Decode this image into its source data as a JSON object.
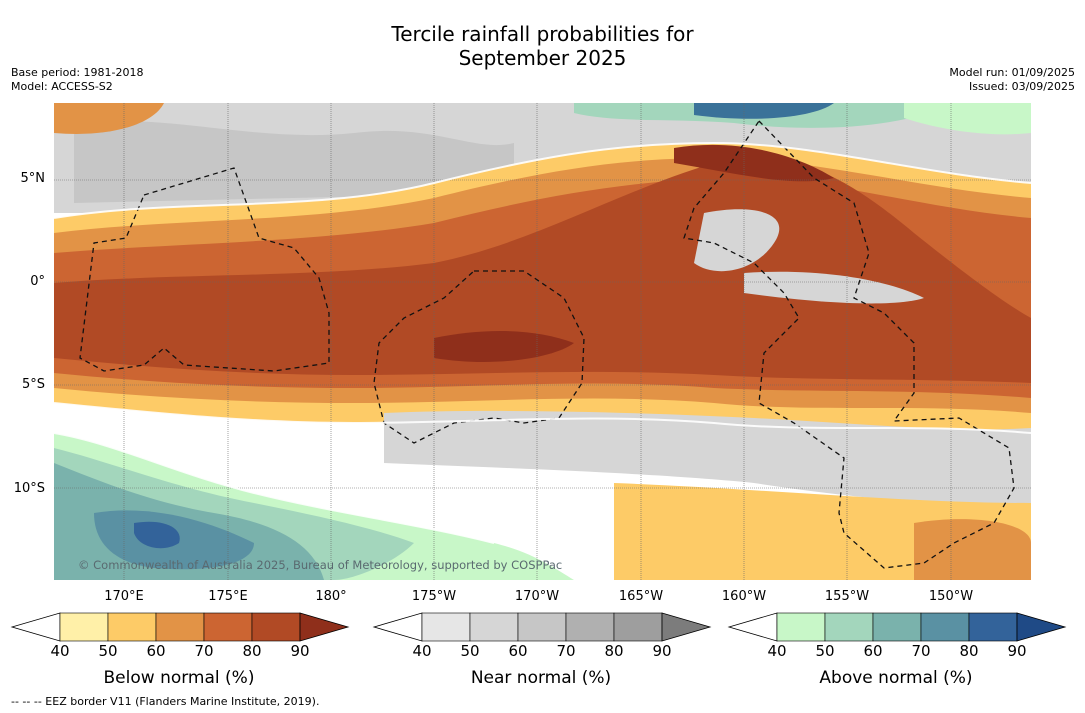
{
  "title": {
    "line1": "Tercile rainfall probabilities for",
    "line2": "September 2025"
  },
  "meta": {
    "base_period": "Base period: 1981-2018",
    "model": "Model: ACCESS-S2",
    "model_run": "Model run: 01/09/2025",
    "issued": "Issued: 03/09/2025"
  },
  "map": {
    "lat_labels": [
      "5°N",
      "0°",
      "5°S",
      "10°S"
    ],
    "lon_labels": [
      "170°E",
      "175°E",
      "180°",
      "175°W",
      "170°W",
      "165°W",
      "160°W",
      "155°W",
      "150°W"
    ],
    "copyright": "© Commonwealth of Australia 2025, Bureau of Meteorology, supported by COSPPac",
    "colors": {
      "ocean_white": "#ffffff",
      "below_40": "#fff0a8",
      "below_50": "#fdcb67",
      "below_60": "#e29346",
      "below_70": "#cc6532",
      "below_80": "#b14a25",
      "below_90": "#8f2f1b",
      "near_40": "#e6e6e6",
      "near_50": "#d6d6d6",
      "near_60": "#c6c6c6",
      "near_70": "#b0b0b0",
      "near_80": "#9e9e9e",
      "near_90": "#7c7c7c",
      "above_40": "#c8f7c8",
      "above_50": "#a3d6bc",
      "above_60": "#7ab2ac",
      "above_70": "#5a91a3",
      "above_80": "#33639a",
      "above_90": "#1f4a86"
    }
  },
  "colorbars": [
    {
      "label": "Below normal (%)",
      "ticks": [
        "40",
        "50",
        "60",
        "70",
        "80",
        "90"
      ],
      "colors": [
        "#fff0a8",
        "#fdcb67",
        "#e29346",
        "#cc6532",
        "#b14a25"
      ],
      "over": "#8f2f1b"
    },
    {
      "label": "Near normal (%)",
      "ticks": [
        "40",
        "50",
        "60",
        "70",
        "80",
        "90"
      ],
      "colors": [
        "#e6e6e6",
        "#d6d6d6",
        "#c6c6c6",
        "#b0b0b0",
        "#9e9e9e"
      ],
      "over": "#7c7c7c"
    },
    {
      "label": "Above normal (%)",
      "ticks": [
        "40",
        "50",
        "60",
        "70",
        "80",
        "90"
      ],
      "colors": [
        "#c8f7c8",
        "#a3d6bc",
        "#7ab2ac",
        "#5a91a3",
        "#33639a"
      ],
      "over": "#1f4a86"
    }
  ],
  "footnote": "--  --  -- EEZ border V11 (Flanders Marine Institute, 2019)."
}
